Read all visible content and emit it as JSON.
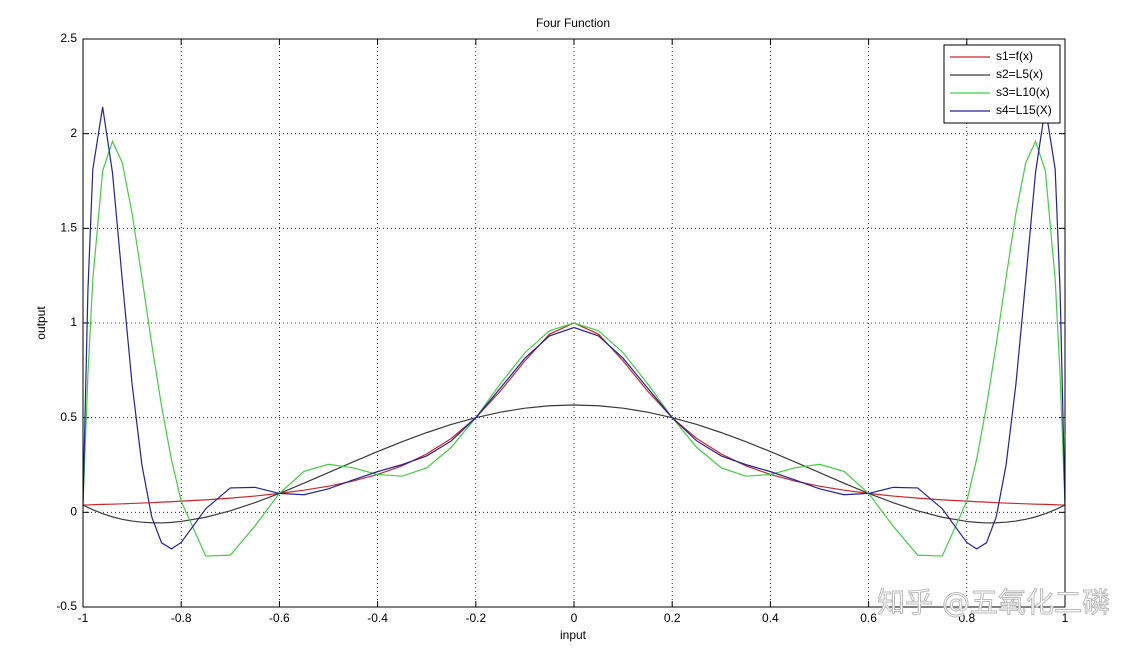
{
  "chart_data": {
    "type": "line",
    "title": "Four Function",
    "x_label": "input",
    "y_label": "output",
    "x": [
      -1,
      -0.99,
      -0.98,
      -0.96,
      -0.94,
      -0.92,
      -0.9,
      -0.88,
      -0.86,
      -0.84,
      -0.82,
      -0.8,
      -0.75,
      -0.7,
      -0.65,
      -0.6,
      -0.55,
      -0.5,
      -0.45,
      -0.4,
      -0.35,
      -0.3,
      -0.25,
      -0.2,
      -0.15,
      -0.1,
      -0.05,
      0,
      0.05,
      0.1,
      0.15,
      0.2,
      0.25,
      0.3,
      0.35,
      0.4,
      0.45,
      0.5,
      0.55,
      0.6,
      0.65,
      0.7,
      0.75,
      0.8,
      0.82,
      0.84,
      0.86,
      0.88,
      0.9,
      0.92,
      0.94,
      0.96,
      0.98,
      0.99,
      1
    ],
    "series": [
      {
        "name": "s1=f(x)",
        "color": "#c8282d",
        "values": [
          0.038,
          0.039,
          0.04,
          0.042,
          0.043,
          0.045,
          0.047,
          0.049,
          0.051,
          0.054,
          0.056,
          0.059,
          0.066,
          0.075,
          0.086,
          0.1,
          0.117,
          0.138,
          0.165,
          0.2,
          0.246,
          0.308,
          0.39,
          0.5,
          0.64,
          0.8,
          0.941,
          1,
          0.941,
          0.8,
          0.64,
          0.5,
          0.39,
          0.308,
          0.246,
          0.2,
          0.165,
          0.138,
          0.117,
          0.1,
          0.086,
          0.075,
          0.066,
          0.059,
          0.056,
          0.054,
          0.051,
          0.049,
          0.047,
          0.045,
          0.043,
          0.042,
          0.04,
          0.039,
          0.038
        ]
      },
      {
        "name": "s2=L5(x)",
        "color": "#3a3a3a",
        "values": [
          0.038,
          0.026,
          0.014,
          -0.007,
          -0.024,
          -0.037,
          -0.046,
          -0.052,
          -0.055,
          -0.056,
          -0.053,
          -0.048,
          -0.026,
          0.008,
          0.051,
          0.1,
          0.154,
          0.21,
          0.266,
          0.321,
          0.373,
          0.421,
          0.464,
          0.5,
          0.529,
          0.55,
          0.563,
          0.567,
          0.563,
          0.55,
          0.529,
          0.5,
          0.464,
          0.421,
          0.373,
          0.321,
          0.266,
          0.21,
          0.154,
          0.1,
          0.051,
          0.008,
          -0.026,
          -0.048,
          -0.053,
          -0.056,
          -0.055,
          -0.052,
          -0.046,
          -0.037,
          -0.024,
          -0.007,
          0.014,
          0.026,
          0.038
        ]
      },
      {
        "name": "s3=L10(x)",
        "color": "#40d040",
        "values": [
          0.038,
          0.726,
          1.23,
          1.804,
          1.959,
          1.846,
          1.579,
          1.24,
          0.888,
          0.56,
          0.28,
          0.059,
          -0.231,
          -0.226,
          -0.073,
          0.1,
          0.216,
          0.254,
          0.235,
          0.2,
          0.191,
          0.235,
          0.343,
          0.5,
          0.679,
          0.843,
          0.959,
          1,
          0.959,
          0.843,
          0.679,
          0.5,
          0.343,
          0.235,
          0.191,
          0.2,
          0.235,
          0.254,
          0.216,
          0.1,
          -0.073,
          -0.226,
          -0.231,
          0.059,
          0.28,
          0.56,
          0.888,
          1.24,
          1.579,
          1.846,
          1.959,
          1.804,
          1.23,
          0.726,
          0.038
        ]
      },
      {
        "name": "s4=L15(X)",
        "color": "#22229a",
        "values": [
          0.038,
          1.17,
          1.812,
          2.141,
          1.795,
          1.227,
          0.676,
          0.25,
          -0.024,
          -0.161,
          -0.193,
          -0.159,
          0.019,
          0.129,
          0.132,
          0.1,
          0.093,
          0.124,
          0.171,
          0.215,
          0.252,
          0.298,
          0.377,
          0.5,
          0.656,
          0.814,
          0.932,
          0.976,
          0.932,
          0.814,
          0.656,
          0.5,
          0.377,
          0.298,
          0.252,
          0.215,
          0.171,
          0.124,
          0.093,
          0.1,
          0.132,
          0.129,
          0.019,
          -0.159,
          -0.193,
          -0.161,
          -0.024,
          0.25,
          0.676,
          1.227,
          1.795,
          2.141,
          1.812,
          1.17,
          0.038
        ]
      }
    ],
    "xlim": [
      -1,
      1
    ],
    "xticks": [
      -1,
      -0.8,
      -0.6,
      -0.4,
      -0.2,
      0,
      0.2,
      0.4,
      0.6,
      0.8,
      1
    ],
    "ylim": [
      -0.5,
      2.5
    ],
    "yticks": [
      -0.5,
      0,
      0.5,
      1,
      1.5,
      2,
      2.5
    ],
    "grid": true,
    "legend": "upper right",
    "watermark": "知乎 @五氧化二磷"
  }
}
